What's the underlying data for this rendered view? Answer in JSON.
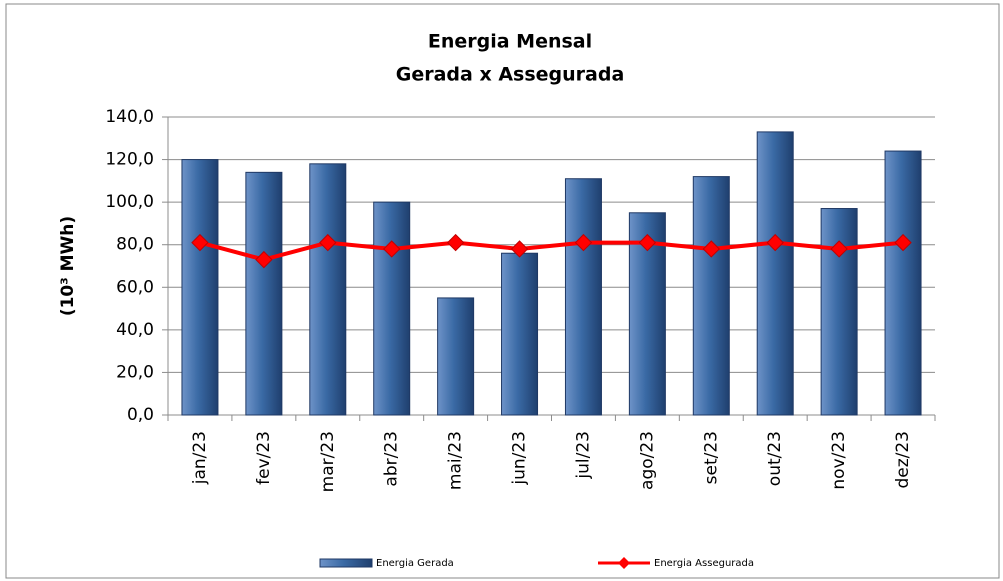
{
  "chart_data": {
    "type": "bar",
    "title": [
      "Energia Mensal",
      "Gerada x Assegurada"
    ],
    "y_label": "(10³ MWh)",
    "categories": [
      "jan/23",
      "fev/23",
      "mar/23",
      "abr/23",
      "mai/23",
      "jun/23",
      "jul/23",
      "ago/23",
      "set/23",
      "out/23",
      "nov/23",
      "dez/23"
    ],
    "series": [
      {
        "name": "Energia Gerada",
        "type": "bar",
        "color": "#3a6aa5",
        "values": [
          120,
          114,
          118,
          100,
          55,
          76,
          111,
          95,
          112,
          133,
          97,
          124
        ]
      },
      {
        "name": "Energia Assegurada",
        "type": "line",
        "color": "#ff0000",
        "values": [
          81,
          73,
          81,
          78,
          81,
          78,
          81,
          81,
          78,
          81,
          78,
          81
        ]
      }
    ],
    "ylim": [
      0,
      140
    ],
    "yticks": [
      {
        "value": 0,
        "label": "0,0"
      },
      {
        "value": 20,
        "label": "20,0"
      },
      {
        "value": 40,
        "label": "40,0"
      },
      {
        "value": 60,
        "label": "60,0"
      },
      {
        "value": 80,
        "label": "80,0"
      },
      {
        "value": 100,
        "label": "100,0"
      },
      {
        "value": 120,
        "label": "120,0"
      },
      {
        "value": 140,
        "label": "140,0"
      }
    ],
    "grid": true,
    "legend": "bottom"
  }
}
